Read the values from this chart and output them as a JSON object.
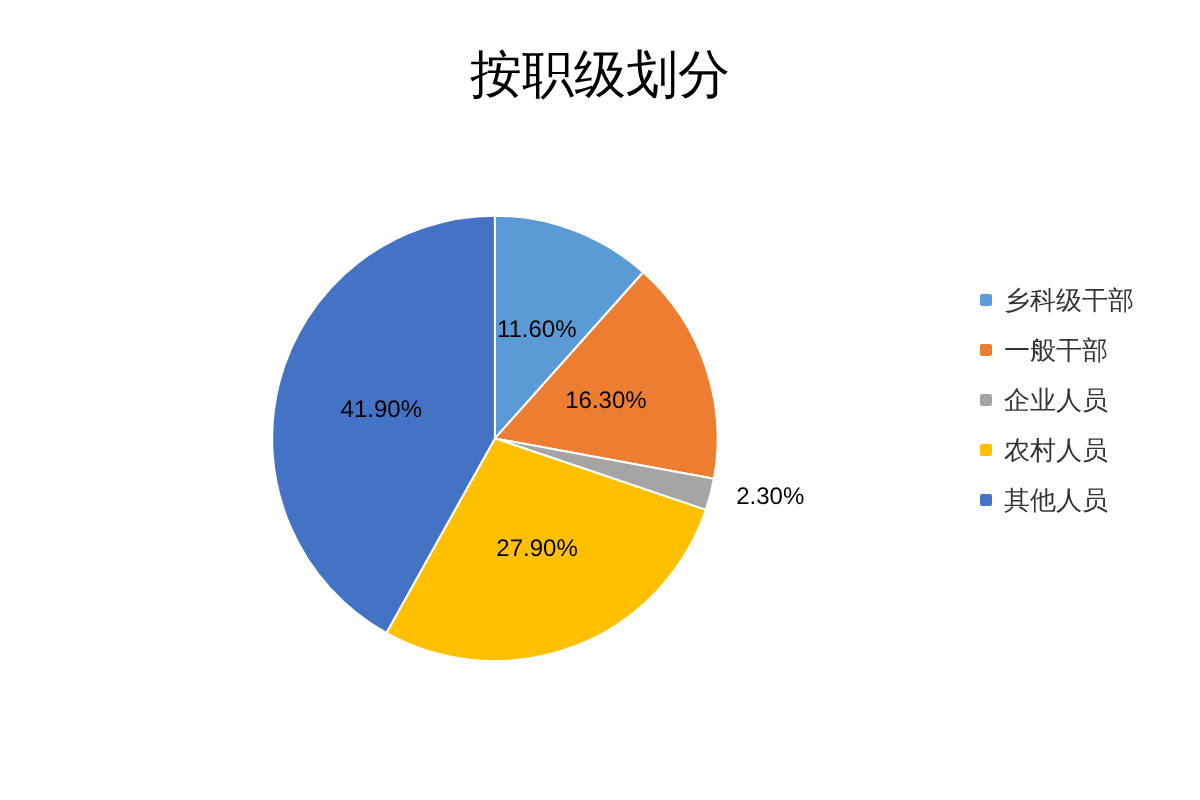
{
  "chart_data": {
    "type": "pie",
    "title": "按职级划分",
    "categories": [
      "乡科级干部",
      "一般干部",
      "企业人员",
      "农村人员",
      "其他人员"
    ],
    "values": [
      11.6,
      16.3,
      2.3,
      27.9,
      41.9
    ],
    "colors": [
      "#5b9bd5",
      "#ed7d31",
      "#a5a5a5",
      "#ffc000",
      "#4472c4"
    ],
    "value_labels": [
      "11.60%",
      "16.30%",
      "2.30%",
      "27.90%",
      "41.90%"
    ],
    "legend": "right"
  }
}
